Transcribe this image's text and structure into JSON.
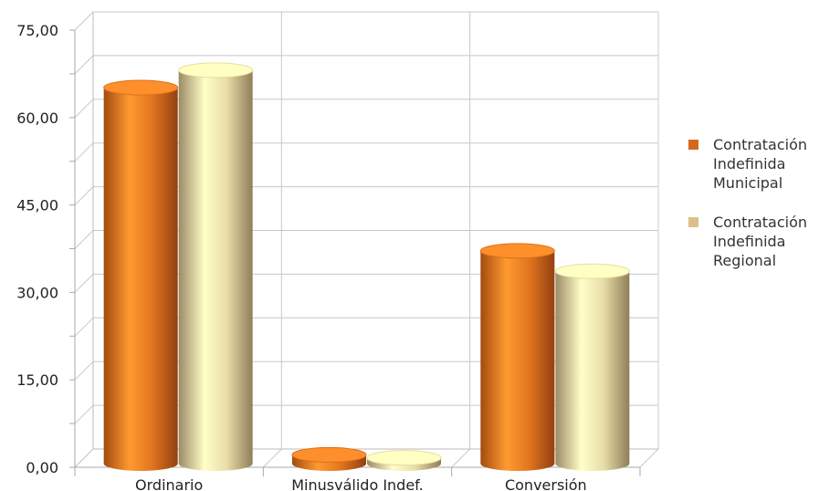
{
  "chart_data": {
    "type": "bar",
    "categories": [
      "Ordinario",
      "Minusválido Indef.",
      "Conversión"
    ],
    "series": [
      {
        "name": "Contratación\nIndefinida\nMunicipal",
        "values": [
          64.5,
          1.5,
          36.5
        ],
        "color": "#d4691e"
      },
      {
        "name": "Contratación\nIndefinida\nRegional",
        "values": [
          67.5,
          1.0,
          33.0
        ],
        "color": "#dcc08a"
      }
    ],
    "ylim": [
      0,
      75
    ],
    "yticks": [
      "0,00",
      "15,00",
      "30,00",
      "45,00",
      "60,00",
      "75,00"
    ],
    "ytick_values": [
      0,
      15,
      30,
      45,
      60,
      75
    ],
    "grid": true,
    "legend_position": "right",
    "style": "3d-cylinder"
  }
}
